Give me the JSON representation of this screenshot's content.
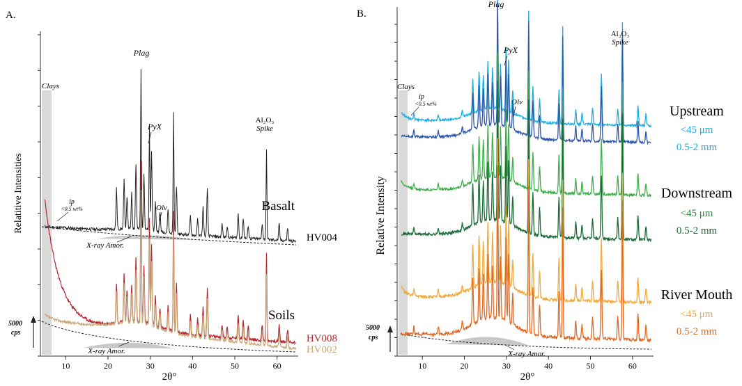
{
  "chart_data": [
    {
      "panel_label": "A.",
      "type": "line",
      "xlabel": "2θ°",
      "ylabel": "Relatitive Intensities",
      "xlim": [
        4,
        65
      ],
      "xticks": [
        10,
        20,
        30,
        40,
        50,
        60
      ],
      "scale_bar": "5000 cps",
      "clay_band": {
        "label": "Clays",
        "x_range": [
          4.5,
          7.5
        ]
      },
      "groups": [
        {
          "name": "Basalt",
          "color": "#222222",
          "series": [
            {
              "name": "HV004",
              "color": "#222222"
            }
          ]
        },
        {
          "name": "Soils",
          "color": "#222222",
          "series": [
            {
              "name": "HV008",
              "color": "#b3272d"
            },
            {
              "name": "HV002",
              "color": "#c9a877"
            }
          ]
        }
      ],
      "peaks": [
        {
          "x": 22,
          "h": 0.25
        },
        {
          "x": 23.8,
          "h": 0.3
        },
        {
          "x": 24.5,
          "h": 0.2
        },
        {
          "x": 25.6,
          "h": 0.22
        },
        {
          "x": 26.6,
          "h": 0.4
        },
        {
          "x": 27.8,
          "h": 1.0
        },
        {
          "x": 28.5,
          "h": 0.35
        },
        {
          "x": 29.8,
          "h": 0.65
        },
        {
          "x": 30.3,
          "h": 0.5
        },
        {
          "x": 31.2,
          "h": 0.18
        },
        {
          "x": 32.3,
          "h": 0.12
        },
        {
          "x": 34.2,
          "h": 0.15
        },
        {
          "x": 35.5,
          "h": 0.75
        },
        {
          "x": 36.2,
          "h": 0.3
        },
        {
          "x": 39.5,
          "h": 0.12
        },
        {
          "x": 41.2,
          "h": 0.1
        },
        {
          "x": 42.5,
          "h": 0.18
        },
        {
          "x": 43.5,
          "h": 0.3
        },
        {
          "x": 47,
          "h": 0.08
        },
        {
          "x": 48.2,
          "h": 0.07
        },
        {
          "x": 50.8,
          "h": 0.15
        },
        {
          "x": 52,
          "h": 0.12
        },
        {
          "x": 53.2,
          "h": 0.08
        },
        {
          "x": 56.5,
          "h": 0.1
        },
        {
          "x": 57.5,
          "h": 0.55
        },
        {
          "x": 60.5,
          "h": 0.1
        },
        {
          "x": 62.5,
          "h": 0.08
        }
      ],
      "annotations": [
        {
          "text": "Plag",
          "x": 27.5,
          "style": "italic"
        },
        {
          "text": "PyX",
          "x": 30,
          "style": "italic"
        },
        {
          "text": "Olv",
          "x": 33,
          "style": "italic"
        },
        {
          "text": "ip",
          "x": 10,
          "style": "italic"
        },
        {
          "text": "<0.5 wt%",
          "x": 10,
          "style": "italic"
        },
        {
          "text": "X-ray Amor.",
          "x": 22,
          "style": "italic"
        },
        {
          "text": "X-ray Amor.",
          "x": 22,
          "style": "italic"
        },
        {
          "text": "Al₂O₃",
          "x": 57.5,
          "style": "normal",
          "color": "#8a8a8a"
        },
        {
          "text": "Spike",
          "x": 57.5,
          "style": "italic",
          "color": "#8a8a8a"
        }
      ]
    },
    {
      "panel_label": "B.",
      "type": "line",
      "xlabel": "2θ°",
      "ylabel": "Relative Intensity",
      "xlim": [
        4,
        65
      ],
      "xticks": [
        10,
        20,
        30,
        40,
        50,
        60
      ],
      "scale_bar": "5000 cps",
      "clay_band": {
        "label": "Clays",
        "x_range": [
          4.8,
          7.2
        ]
      },
      "groups": [
        {
          "name": "Upstream",
          "color": "#222222",
          "series": [
            {
              "name": "<45 μm",
              "color": "#1eaee0"
            },
            {
              "name": "0.5-2 mm",
              "color": "#2f56a8"
            }
          ]
        },
        {
          "name": "Downstream",
          "color": "#222222",
          "series": [
            {
              "name": "<45 μm",
              "color": "#3fae4a"
            },
            {
              "name": "0.5-2 mm",
              "color": "#1a6b35"
            }
          ]
        },
        {
          "name": "River Mouth",
          "color": "#222222",
          "series": [
            {
              "name": "<45 μm",
              "color": "#f2a93b"
            },
            {
              "name": "0.5-2 mm",
              "color": "#e06a25"
            }
          ]
        }
      ],
      "legend_label_colors": [
        "#1eaee0",
        "#1eaee0",
        "#2f8a3a",
        "#1a6b35",
        "#f2a93b",
        "#e06a25"
      ],
      "peaks": [
        {
          "x": 8,
          "h": 0.05
        },
        {
          "x": 13.8,
          "h": 0.05
        },
        {
          "x": 19.5,
          "h": 0.05
        },
        {
          "x": 22,
          "h": 0.3
        },
        {
          "x": 23.5,
          "h": 0.35
        },
        {
          "x": 24.5,
          "h": 0.3
        },
        {
          "x": 25.6,
          "h": 0.42
        },
        {
          "x": 26.7,
          "h": 0.35
        },
        {
          "x": 27.9,
          "h": 1.0
        },
        {
          "x": 28.6,
          "h": 0.4
        },
        {
          "x": 29.9,
          "h": 0.55
        },
        {
          "x": 30.5,
          "h": 0.45
        },
        {
          "x": 31.5,
          "h": 0.2
        },
        {
          "x": 35.3,
          "h": 0.95
        },
        {
          "x": 36.3,
          "h": 0.3
        },
        {
          "x": 37.9,
          "h": 0.2
        },
        {
          "x": 42.5,
          "h": 0.3
        },
        {
          "x": 43.4,
          "h": 0.85
        },
        {
          "x": 46.5,
          "h": 0.12
        },
        {
          "x": 48,
          "h": 0.1
        },
        {
          "x": 50.5,
          "h": 0.15
        },
        {
          "x": 52.6,
          "h": 0.45
        },
        {
          "x": 56.5,
          "h": 0.15
        },
        {
          "x": 57.6,
          "h": 0.9
        },
        {
          "x": 61.3,
          "h": 0.18
        },
        {
          "x": 63.2,
          "h": 0.1
        }
      ],
      "annotations": [
        {
          "text": "Plag",
          "x": 27.9,
          "style": "italic"
        },
        {
          "text": "PyX",
          "x": 30,
          "style": "italic"
        },
        {
          "text": "Olv",
          "x": 32,
          "style": "italic"
        },
        {
          "text": "ip",
          "x": 10,
          "style": "italic"
        },
        {
          "text": "<0.5 wt%",
          "x": 10,
          "style": "italic"
        },
        {
          "text": "X-ray Amor.",
          "x": 28,
          "style": "italic"
        },
        {
          "text": "Al₂O₃",
          "x": 57.6,
          "style": "normal",
          "color": "#8a8a8a"
        },
        {
          "text": "Spike",
          "x": 57.6,
          "style": "italic",
          "color": "#8a8a8a"
        }
      ]
    }
  ]
}
